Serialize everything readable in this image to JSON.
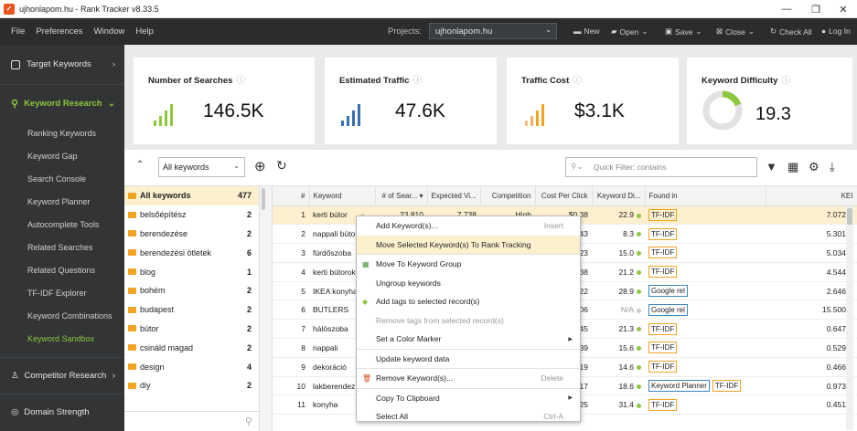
{
  "window": {
    "title": "ujhonlapom.hu - Rank Tracker v8.33.5",
    "minimize": "—",
    "maximize": "❐",
    "close": "✕"
  },
  "menu": [
    "File",
    "Preferences",
    "Window",
    "Help"
  ],
  "projects": {
    "label": "Projects:",
    "value": "ujhonlapom.hu"
  },
  "toolbar": {
    "new": "New",
    "open": "Open",
    "save": "Save",
    "close": "Close",
    "check_all": "Check All",
    "login": "Log In"
  },
  "sidebar": {
    "target": "Target Keywords",
    "research": "Keyword Research",
    "sub": [
      "Ranking Keywords",
      "Keyword Gap",
      "Search Console",
      "Keyword Planner",
      "Autocomplete Tools",
      "Related Searches",
      "Related Questions",
      "TF-IDF Explorer",
      "Keyword Combinations",
      "Keyword Sandbox"
    ],
    "competitor": "Competitor Research",
    "domain": "Domain Strength"
  },
  "cards": {
    "searches": {
      "title": "Number of Searches",
      "value": "146.5K"
    },
    "traffic": {
      "title": "Estimated Traffic",
      "value": "47.6K"
    },
    "cost": {
      "title": "Traffic Cost",
      "value": "$3.1K"
    },
    "difficulty": {
      "title": "Keyword Difficulty",
      "value": "19.3",
      "fraction": 0.193
    }
  },
  "filter": {
    "select": "All keywords",
    "quick_filter": "Quick Filter: contains"
  },
  "groups": [
    {
      "name": "All keywords",
      "count": "477"
    },
    {
      "name": "belsőépítész",
      "count": "2"
    },
    {
      "name": "berendezése",
      "count": "2"
    },
    {
      "name": "berendezési ötletek",
      "count": "6"
    },
    {
      "name": "blog",
      "count": "1"
    },
    {
      "name": "bohém",
      "count": "2"
    },
    {
      "name": "budapest",
      "count": "2"
    },
    {
      "name": "bútor",
      "count": "2"
    },
    {
      "name": "csináld magad",
      "count": "2"
    },
    {
      "name": "design",
      "count": "4"
    },
    {
      "name": "diy",
      "count": "2"
    }
  ],
  "columns": [
    "#",
    "Keyword",
    "# of Sear...",
    "Expected Vi...",
    "Competition",
    "Cost Per Click",
    "Keyword Di...",
    "Found in",
    "KEI"
  ],
  "rows": [
    {
      "n": "1",
      "kw": "kerti bútor",
      "extra": "»",
      "searches": "23 810",
      "visits": "7 738",
      "comp": "High",
      "cpc": "$0.38",
      "kd": "22.9",
      "found": [
        "TF-IDF"
      ],
      "kei": "7.072"
    },
    {
      "n": "2",
      "kw": "nappali bútor",
      "cpc": "$0.43",
      "kd": "8.3",
      "found": [
        "TF-IDF"
      ],
      "kei": "5.301"
    },
    {
      "n": "3",
      "kw": "fürdőszoba",
      "cpc": "$0.23",
      "kd": "15.0",
      "found": [
        "TF-IDF"
      ],
      "kei": "5.034"
    },
    {
      "n": "4",
      "kw": "kerti bútorok",
      "cpc": "$0.38",
      "kd": "21.2",
      "found": [
        "TF-IDF"
      ],
      "kei": "4.544"
    },
    {
      "n": "5",
      "kw": "IKEA konyha",
      "cpc": "$0.22",
      "kd": "28.9",
      "found": [
        "Google rel"
      ],
      "kei": "2.646"
    },
    {
      "n": "6",
      "kw": "BUTLERS",
      "cpc": "$0.06",
      "kd": "N/A",
      "found": [
        "Google rel"
      ],
      "kei": "15.500"
    },
    {
      "n": "7",
      "kw": "hálószoba",
      "cpc": "$0.45",
      "kd": "21.3",
      "found": [
        "TF-IDF"
      ],
      "kei": "0.647"
    },
    {
      "n": "8",
      "kw": "nappali",
      "cpc": "$0.39",
      "kd": "15.6",
      "found": [
        "TF-IDF"
      ],
      "kei": "0.529"
    },
    {
      "n": "9",
      "kw": "dekoráció",
      "cpc": "$0.19",
      "kd": "14.6",
      "found": [
        "TF-IDF"
      ],
      "kei": "0.466"
    },
    {
      "n": "10",
      "kw": "lakberendez",
      "cpc": "$0.17",
      "kd": "18.6",
      "found": [
        "Keyword Planner",
        "TF-IDF"
      ],
      "kei": "0.973"
    },
    {
      "n": "11",
      "kw": "konyha",
      "cpc": "$0.25",
      "kd": "31.4",
      "found": [
        "TF-IDF"
      ],
      "kei": "0.451"
    }
  ],
  "context_menu": [
    {
      "label": "Add Keyword(s)...",
      "shortcut": "Insert"
    },
    {
      "label": "Move Selected Keyword(s) To Rank Tracking",
      "hover": true
    },
    {
      "sep": true
    },
    {
      "label": "Move To Keyword Group"
    },
    {
      "label": "Ungroup keywords"
    },
    {
      "label": "Add tags to selected record(s)"
    },
    {
      "label": "Remove tags from selected record(s)",
      "disabled": true
    },
    {
      "label": "Set a Color Marker",
      "submenu": true
    },
    {
      "sep": true
    },
    {
      "label": "Update keyword data"
    },
    {
      "sep": true
    },
    {
      "label": "Remove Keyword(s)...",
      "shortcut": "Delete"
    },
    {
      "sep": true
    },
    {
      "label": "Copy To Clipboard",
      "submenu": true
    },
    {
      "label": "Select All",
      "shortcut": "Ctrl-A"
    }
  ],
  "colors": {
    "green": "#8dc63f",
    "blue": "#3a6fb0",
    "orange": "#f2a321",
    "tfidf": "#f2a321",
    "google": "#3a86c8"
  }
}
